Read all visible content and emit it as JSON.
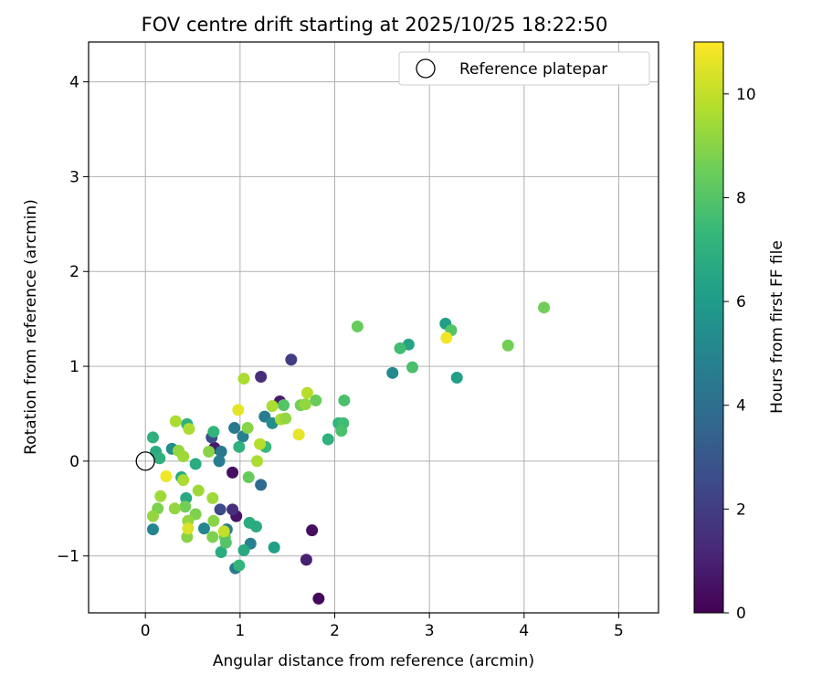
{
  "chart_data": {
    "type": "scatter",
    "title": "FOV centre drift starting at 2025/10/25 18:22:50",
    "xlabel": "Angular distance from reference (arcmin)",
    "ylabel": "Rotation from reference (arcmin)",
    "xlim": [
      -0.6,
      5.42
    ],
    "ylim": [
      -1.6,
      4.42
    ],
    "xticks": [
      0,
      1,
      2,
      3,
      4,
      5
    ],
    "yticks": [
      -1,
      0,
      1,
      2,
      3,
      4
    ],
    "grid": true,
    "legend": {
      "label": "Reference platepar",
      "position": "top-right"
    },
    "reference": {
      "x": 0,
      "y": 0
    },
    "colorbar": {
      "label": "Hours from first FF file",
      "range": [
        0,
        11
      ],
      "ticks": [
        0,
        2,
        4,
        6,
        8,
        10
      ],
      "colormap": [
        "#440154",
        "#482878",
        "#3e4989",
        "#31688e",
        "#26828e",
        "#1f9e89",
        "#35b779",
        "#6ece58",
        "#b5de2b",
        "#fde725"
      ]
    },
    "points": [
      {
        "x": 1.83,
        "y": -1.45,
        "h": 0.2
      },
      {
        "x": 1.7,
        "y": -1.04,
        "h": 1.0
      },
      {
        "x": 1.76,
        "y": -0.73,
        "h": 0.4
      },
      {
        "x": 0.96,
        "y": -0.58,
        "h": 0.6
      },
      {
        "x": 0.92,
        "y": -0.51,
        "h": 1.5
      },
      {
        "x": 0.92,
        "y": -0.12,
        "h": 0.4
      },
      {
        "x": 0.73,
        "y": 0.14,
        "h": 0.8
      },
      {
        "x": 1.22,
        "y": 0.89,
        "h": 1.4
      },
      {
        "x": 1.54,
        "y": 1.07,
        "h": 2.0
      },
      {
        "x": 1.42,
        "y": 0.63,
        "h": 0.8
      },
      {
        "x": 0.79,
        "y": -0.51,
        "h": 2.5
      },
      {
        "x": 0.7,
        "y": 0.25,
        "h": 2.6
      },
      {
        "x": 0.95,
        "y": -1.13,
        "h": 4.6
      },
      {
        "x": 1.11,
        "y": -0.87,
        "h": 4.8
      },
      {
        "x": 0.86,
        "y": -0.72,
        "h": 4.6
      },
      {
        "x": 1.22,
        "y": -0.25,
        "h": 3.8
      },
      {
        "x": 1.26,
        "y": 0.47,
        "h": 4.6
      },
      {
        "x": 0.94,
        "y": 0.35,
        "h": 4.4
      },
      {
        "x": 0.8,
        "y": 0.1,
        "h": 4.4
      },
      {
        "x": 0.78,
        "y": 0.0,
        "h": 4.6
      },
      {
        "x": 1.03,
        "y": 0.26,
        "h": 4.8
      },
      {
        "x": 0.62,
        "y": -0.71,
        "h": 5.0
      },
      {
        "x": 0.08,
        "y": -0.72,
        "h": 5.0
      },
      {
        "x": 2.61,
        "y": 0.93,
        "h": 5.2
      },
      {
        "x": 0.28,
        "y": 0.13,
        "h": 5.4
      },
      {
        "x": 1.34,
        "y": 0.4,
        "h": 5.4
      },
      {
        "x": 3.17,
        "y": 1.45,
        "h": 6.2
      },
      {
        "x": 2.78,
        "y": 1.23,
        "h": 6.4
      },
      {
        "x": 3.29,
        "y": 0.88,
        "h": 6.2
      },
      {
        "x": 1.36,
        "y": -0.91,
        "h": 6.2
      },
      {
        "x": 1.04,
        "y": -0.94,
        "h": 6.6
      },
      {
        "x": 0.8,
        "y": -0.96,
        "h": 6.8
      },
      {
        "x": 1.17,
        "y": -0.69,
        "h": 6.8
      },
      {
        "x": 1.1,
        "y": -0.65,
        "h": 6.8
      },
      {
        "x": 0.99,
        "y": -1.1,
        "h": 7.2
      },
      {
        "x": 0.43,
        "y": -0.39,
        "h": 6.6
      },
      {
        "x": 0.38,
        "y": -0.17,
        "h": 6.6
      },
      {
        "x": 0.11,
        "y": 0.1,
        "h": 6.8
      },
      {
        "x": 0.08,
        "y": 0.25,
        "h": 7.0
      },
      {
        "x": 0.15,
        "y": 0.03,
        "h": 7.0
      },
      {
        "x": 0.44,
        "y": 0.39,
        "h": 7.0
      },
      {
        "x": 0.53,
        "y": -0.03,
        "h": 6.8
      },
      {
        "x": 0.72,
        "y": 0.31,
        "h": 7.2
      },
      {
        "x": 0.99,
        "y": 0.15,
        "h": 7.0
      },
      {
        "x": 1.27,
        "y": 0.15,
        "h": 7.4
      },
      {
        "x": 1.93,
        "y": 0.23,
        "h": 7.0
      },
      {
        "x": 2.04,
        "y": 0.4,
        "h": 7.2
      },
      {
        "x": 2.09,
        "y": 0.4,
        "h": 7.6
      },
      {
        "x": 2.07,
        "y": 0.32,
        "h": 7.8
      },
      {
        "x": 2.1,
        "y": 0.64,
        "h": 7.8
      },
      {
        "x": 2.69,
        "y": 1.19,
        "h": 7.6
      },
      {
        "x": 2.82,
        "y": 0.99,
        "h": 7.8
      },
      {
        "x": 3.23,
        "y": 1.38,
        "h": 8.0
      },
      {
        "x": 2.24,
        "y": 1.42,
        "h": 8.4
      },
      {
        "x": 3.83,
        "y": 1.22,
        "h": 8.6
      },
      {
        "x": 4.21,
        "y": 1.62,
        "h": 8.6
      },
      {
        "x": 1.8,
        "y": 0.64,
        "h": 8.4
      },
      {
        "x": 1.64,
        "y": 0.59,
        "h": 8.6
      },
      {
        "x": 1.46,
        "y": 0.59,
        "h": 8.0
      },
      {
        "x": 1.09,
        "y": -0.17,
        "h": 8.4
      },
      {
        "x": 0.84,
        "y": -0.8,
        "h": 8.4
      },
      {
        "x": 0.85,
        "y": -0.86,
        "h": 8.0
      },
      {
        "x": 0.71,
        "y": -0.8,
        "h": 8.8
      },
      {
        "x": 0.44,
        "y": -0.8,
        "h": 9.0
      },
      {
        "x": 0.13,
        "y": -0.5,
        "h": 8.8
      },
      {
        "x": 0.53,
        "y": -0.56,
        "h": 8.8
      },
      {
        "x": 0.42,
        "y": -0.48,
        "h": 8.6
      },
      {
        "x": 0.72,
        "y": -0.63,
        "h": 9.0
      },
      {
        "x": 0.45,
        "y": -0.63,
        "h": 9.2
      },
      {
        "x": 0.31,
        "y": -0.5,
        "h": 9.2
      },
      {
        "x": 0.08,
        "y": -0.58,
        "h": 9.2
      },
      {
        "x": 0.16,
        "y": -0.37,
        "h": 9.4
      },
      {
        "x": 0.56,
        "y": -0.31,
        "h": 9.4
      },
      {
        "x": 0.71,
        "y": -0.39,
        "h": 9.4
      },
      {
        "x": 0.4,
        "y": -0.2,
        "h": 9.6
      },
      {
        "x": 0.35,
        "y": 0.11,
        "h": 9.2
      },
      {
        "x": 0.67,
        "y": 0.1,
        "h": 9.0
      },
      {
        "x": 0.4,
        "y": 0.05,
        "h": 9.4
      },
      {
        "x": 0.46,
        "y": 0.34,
        "h": 9.6
      },
      {
        "x": 0.32,
        "y": 0.42,
        "h": 9.6
      },
      {
        "x": 1.08,
        "y": 0.35,
        "h": 9.0
      },
      {
        "x": 1.18,
        "y": 0.0,
        "h": 9.6
      },
      {
        "x": 1.21,
        "y": 0.18,
        "h": 9.8
      },
      {
        "x": 1.43,
        "y": 0.44,
        "h": 9.6
      },
      {
        "x": 1.48,
        "y": 0.45,
        "h": 9.2
      },
      {
        "x": 1.34,
        "y": 0.58,
        "h": 9.6
      },
      {
        "x": 1.69,
        "y": 0.6,
        "h": 9.2
      },
      {
        "x": 1.71,
        "y": 0.72,
        "h": 9.8
      },
      {
        "x": 1.04,
        "y": 0.87,
        "h": 9.6
      },
      {
        "x": 0.98,
        "y": 0.54,
        "h": 10.6
      },
      {
        "x": 1.62,
        "y": 0.28,
        "h": 10.6
      },
      {
        "x": 3.18,
        "y": 1.3,
        "h": 10.8
      },
      {
        "x": 0.22,
        "y": -0.16,
        "h": 10.8
      },
      {
        "x": 0.45,
        "y": -0.71,
        "h": 10.4
      },
      {
        "x": 0.83,
        "y": -0.74,
        "h": 10.0
      }
    ]
  }
}
